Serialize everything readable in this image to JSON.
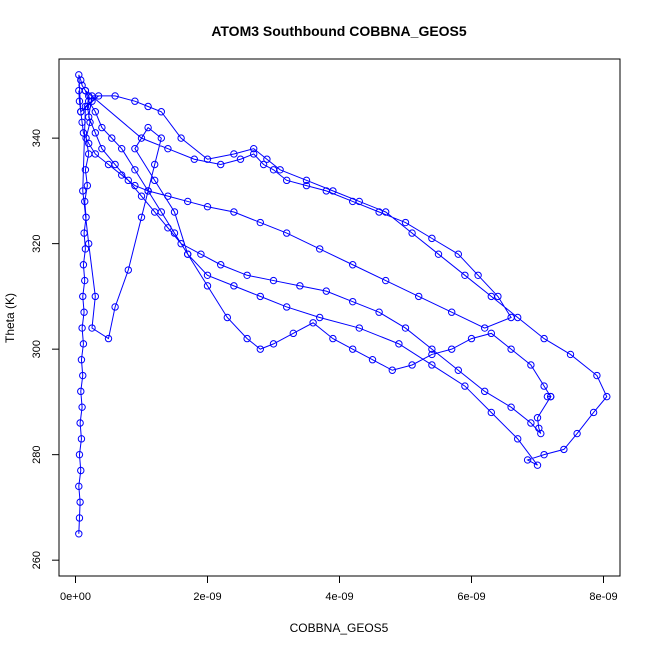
{
  "chart_data": {
    "type": "line",
    "title": "ATOM3 Southbound COBBNA_GEOS5",
    "xlabel": "COBBNA_GEOS5",
    "ylabel": "Theta (K)",
    "xlim": [
      -2.5e-10,
      8.25e-09
    ],
    "ylim": [
      257,
      355
    ],
    "x_ticks": [
      0,
      2e-09,
      4e-09,
      6e-09,
      8e-09
    ],
    "x_tick_labels": [
      "0e+00",
      "2e-09",
      "4e-09",
      "6e-09",
      "8e-09"
    ],
    "y_ticks": [
      260,
      280,
      300,
      320,
      340
    ],
    "y_tick_labels": [
      "260",
      "280",
      "300",
      "320",
      "340"
    ],
    "grid": false,
    "series": [
      {
        "color": "#0000ff",
        "x": [
          5e-11,
          6e-11,
          7e-11,
          5e-11,
          8e-11,
          6e-11,
          9e-11,
          7e-11,
          1e-10,
          8e-11,
          1.1e-10,
          9e-11,
          1.2e-10,
          1e-10,
          1.3e-10,
          1.1e-10,
          1.4e-10,
          1.2e-10,
          1.5e-10,
          1.3e-10,
          1.6e-10,
          1.4e-10,
          1.8e-10,
          1.5e-10,
          2e-10,
          1.6e-10,
          2.2e-10,
          1.8e-10,
          2e-10,
          1.5e-10,
          1e-10,
          8e-11,
          5e-11,
          8e-11,
          3.5e-10,
          2.5e-10,
          1.5e-10,
          1.1e-10,
          2e-10,
          3e-10,
          2.5e-10,
          5e-10,
          6e-10,
          8e-10,
          1e-09,
          1.2e-09,
          1.3e-09,
          1.1e-09,
          9e-10,
          1.2e-09,
          1.5e-09,
          1.7e-09,
          2e-09,
          2.3e-09,
          2.6e-09,
          2.8e-09,
          3e-09,
          3.3e-09,
          3.6e-09,
          3.9e-09,
          4.2e-09,
          4.5e-09,
          4.8e-09,
          5.1e-09,
          5.4e-09,
          5.7e-09,
          6e-09,
          6.3e-09,
          6.6e-09,
          6.9e-09,
          7.1e-09,
          7.2e-09,
          7.15e-09,
          7.2e-09,
          7e-09,
          7.02e-09,
          7.05e-09,
          6.9e-09,
          6.6e-09,
          6.2e-09,
          5.8e-09,
          5.4e-09,
          5e-09,
          4.6e-09,
          4.2e-09,
          3.8e-09,
          3.4e-09,
          3e-09,
          2.6e-09,
          2.2e-09,
          1.9e-09,
          1.6e-09,
          1.4e-09,
          1.2e-09,
          1e-09,
          8e-10,
          6e-10,
          4e-10,
          3e-10,
          2e-10,
          2.5e-10,
          6e-10,
          9e-10,
          1.1e-09,
          1.3e-09,
          1.6e-09,
          2e-09,
          2.4e-09,
          2.7e-09,
          2.9e-09,
          3.1e-09,
          3.5e-09,
          3.9e-09,
          4.3e-09,
          4.7e-09,
          5.1e-09,
          5.5e-09,
          5.9e-09,
          6.3e-09,
          6.7e-09,
          7.1e-09,
          7.5e-09,
          7.9e-09,
          8.05e-09,
          7.85e-09,
          7.6e-09,
          7.4e-09,
          7.1e-09,
          6.85e-09,
          7e-09,
          6.7e-09,
          6.3e-09,
          5.9e-09,
          5.4e-09,
          4.9e-09,
          4.3e-09,
          3.7e-09,
          3.2e-09,
          2.8e-09,
          2.4e-09,
          2e-09,
          1.7e-09,
          1.5e-09,
          1.3e-09,
          1.1e-09,
          9e-10,
          7e-10,
          5.5e-10,
          4e-10,
          3e-10,
          2e-10,
          1.5e-10,
          1e-09,
          1.4e-09,
          1.8e-09,
          2.2e-09,
          2.5e-09,
          2.7e-09,
          2.85e-09,
          3e-09,
          3.2e-09,
          3.5e-09,
          3.8e-09,
          4.2e-09,
          4.6e-09,
          5e-09,
          5.4e-09,
          5.8e-09,
          6.1e-09,
          6.4e-09,
          6.6e-09,
          6.2e-09,
          5.7e-09,
          5.2e-09,
          4.7e-09,
          4.2e-09,
          3.7e-09,
          3.2e-09,
          2.8e-09,
          2.4e-09,
          2e-09,
          1.7e-09,
          1.4e-09,
          1.1e-09,
          9e-10,
          7e-10,
          5e-10,
          3e-10,
          2e-10,
          1.2e-10,
          1e-10,
          8e-11,
          6e-11,
          5e-11
        ],
        "y": [
          265,
          268,
          271,
          274,
          277,
          280,
          283,
          286,
          289,
          292,
          295,
          298,
          301,
          304,
          307,
          310,
          313,
          316,
          319,
          322,
          325,
          328,
          331,
          334,
          337,
          340,
          343,
          346,
          348,
          349,
          350,
          351,
          352,
          345,
          348,
          347,
          346,
          330,
          320,
          310,
          304,
          302,
          308,
          315,
          325,
          335,
          340,
          342,
          338,
          332,
          326,
          318,
          312,
          306,
          302,
          300,
          301,
          303,
          305,
          302,
          300,
          298,
          296,
          297,
          299,
          300,
          302,
          303,
          300,
          297,
          293,
          291,
          291,
          291,
          287,
          285,
          284,
          286,
          289,
          292,
          296,
          300,
          304,
          307,
          309,
          311,
          312,
          313,
          314,
          316,
          318,
          320,
          323,
          326,
          329,
          332,
          335,
          338,
          341,
          344,
          348,
          348,
          347,
          346,
          345,
          340,
          336,
          337,
          338,
          336,
          334,
          332,
          330,
          328,
          326,
          322,
          318,
          314,
          310,
          306,
          302,
          299,
          295,
          291,
          288,
          284,
          281,
          280,
          279,
          278,
          283,
          288,
          293,
          297,
          301,
          304,
          306,
          308,
          310,
          312,
          314,
          318,
          322,
          326,
          330,
          334,
          338,
          340,
          342,
          345,
          347,
          349,
          340,
          338,
          336,
          335,
          336,
          337,
          335,
          334,
          332,
          331,
          330,
          328,
          326,
          324,
          321,
          318,
          314,
          310,
          306,
          304,
          307,
          310,
          313,
          316,
          319,
          322,
          324,
          326,
          327,
          328,
          329,
          330,
          331,
          333,
          335,
          337,
          339,
          341,
          343,
          345,
          347,
          349
        ]
      }
    ]
  }
}
